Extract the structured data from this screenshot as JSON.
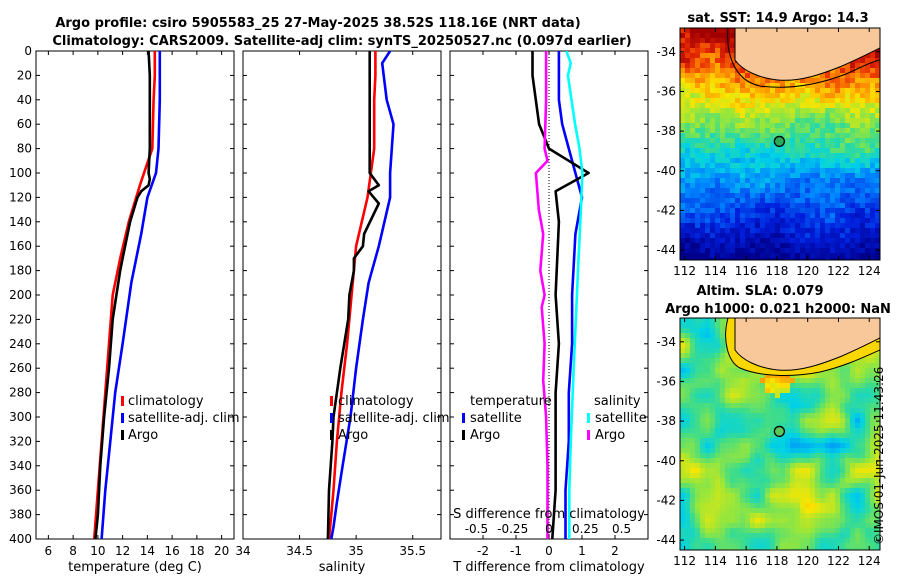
{
  "figure": {
    "title_line1": "Argo profile: csiro 5905583_25 27-May-2025 38.52S 118.16E (NRT data)",
    "title_line2": "Climatology: CARS2009. Satellite-adj clim: synTS_20250527.nc (0.097d earlier)",
    "timestamp": "©IMOS 01-Jun-2025 11:43:26"
  },
  "colors": {
    "climatology": "#ff0000",
    "satellite": "#0000ff",
    "argo": "#000000",
    "salinity_satellite": "#00ffff",
    "salinity_argo": "#ff00ff"
  },
  "chart_data": [
    {
      "id": "temperature",
      "type": "line",
      "xlabel": "temperature (deg C)",
      "ylabel": "",
      "xlim": [
        5,
        21
      ],
      "ylim": [
        400,
        0
      ],
      "xticks": [
        6,
        8,
        10,
        12,
        14,
        16,
        18,
        20
      ],
      "xtick_labels": [
        "6",
        "8",
        "10",
        "12",
        "14",
        "16",
        "18",
        "20"
      ],
      "yticks": [
        0,
        20,
        40,
        60,
        80,
        100,
        120,
        140,
        160,
        180,
        200,
        220,
        240,
        260,
        280,
        300,
        320,
        340,
        360,
        380,
        400
      ],
      "ytick_labels": [
        "0",
        "20",
        "40",
        "60",
        "80",
        "100",
        "120",
        "140",
        "160",
        "180",
        "200",
        "220",
        "240",
        "260",
        "280",
        "300",
        "320",
        "340",
        "360",
        "380",
        "400"
      ],
      "legend": [
        "climatology",
        "satellite-adj. clim",
        "Argo"
      ],
      "series": [
        {
          "name": "climatology",
          "x": [
            14.6,
            14.6,
            14.5,
            14.4,
            13.4,
            12.5,
            11.8,
            11.2,
            10.9,
            10.6,
            10.3,
            10.0,
            9.7
          ],
          "y": [
            0,
            20,
            40,
            80,
            110,
            140,
            170,
            200,
            240,
            280,
            320,
            360,
            400
          ]
        },
        {
          "name": "satellite-adj. clim",
          "x": [
            15.0,
            15.0,
            15.0,
            14.9,
            14.7,
            14.0,
            13.5,
            12.7,
            12.0,
            11.4,
            11.0,
            10.6,
            10.3
          ],
          "y": [
            0,
            20,
            40,
            80,
            100,
            120,
            150,
            190,
            240,
            280,
            320,
            360,
            400
          ]
        },
        {
          "name": "Argo",
          "x": [
            14.1,
            14.2,
            14.2,
            14.2,
            14.1,
            14.2,
            14.1,
            13.5,
            13.2,
            12.6,
            12.4,
            12.0,
            11.8,
            11.5,
            11.2,
            10.9,
            10.5,
            10.2,
            10.0,
            9.8
          ],
          "y": [
            0,
            20,
            40,
            80,
            100,
            105,
            110,
            115,
            120,
            140,
            150,
            170,
            180,
            200,
            220,
            260,
            300,
            340,
            380,
            400
          ]
        }
      ]
    },
    {
      "id": "salinity",
      "type": "line",
      "xlabel": "salinity",
      "ylabel": "",
      "xlim": [
        34,
        35.75
      ],
      "ylim": [
        400,
        0
      ],
      "xticks": [
        34,
        34.5,
        35,
        35.5
      ],
      "xtick_labels": [
        "34",
        "34.5",
        "35",
        "35.5"
      ],
      "legend": [
        "climatology",
        "satellite-adj. clim",
        "Argo"
      ],
      "series": [
        {
          "name": "climatology",
          "x": [
            35.17,
            35.17,
            35.16,
            35.16,
            35.1,
            35.0,
            34.96,
            34.92,
            34.87,
            34.83,
            34.8,
            34.78,
            34.76
          ],
          "y": [
            0,
            20,
            40,
            80,
            120,
            160,
            200,
            240,
            280,
            320,
            360,
            380,
            400
          ]
        },
        {
          "name": "satellite-adj. clim",
          "x": [
            35.3,
            35.23,
            35.27,
            35.33,
            35.3,
            35.3,
            35.2,
            35.11,
            35.06,
            35.0,
            34.95,
            34.88,
            34.83,
            34.8,
            34.78
          ],
          "y": [
            0,
            10,
            40,
            60,
            100,
            120,
            160,
            190,
            220,
            260,
            300,
            340,
            370,
            390,
            400
          ]
        },
        {
          "name": "Argo",
          "x": [
            35.12,
            35.12,
            35.12,
            35.12,
            35.2,
            35.11,
            35.2,
            35.07,
            35.06,
            34.98,
            34.98,
            34.94,
            34.93,
            34.86,
            34.83,
            34.8,
            34.79,
            34.76,
            34.75
          ],
          "y": [
            0,
            20,
            60,
            100,
            110,
            115,
            125,
            150,
            160,
            170,
            180,
            200,
            220,
            260,
            280,
            300,
            320,
            360,
            400
          ]
        }
      ]
    },
    {
      "id": "difference",
      "type": "line",
      "xlabel": "T difference from climatology",
      "top_label": "S difference from climatology",
      "xlim": [
        -3,
        3
      ],
      "ylim": [
        400,
        0
      ],
      "xticks": [
        -2,
        -1,
        0,
        1,
        2
      ],
      "xtick_labels": [
        "-2",
        "-1",
        "0",
        "1",
        "2"
      ],
      "s_xticks": [
        -0.5,
        -0.25,
        0,
        0.25,
        0.5
      ],
      "s_xtick_labels": [
        "-0.5",
        "-0.25",
        "0",
        "0.25",
        "0.5"
      ],
      "legend_temperature_title": "temperature",
      "legend_salinity_title": "salinity",
      "legend_temperature": [
        "satellite",
        "Argo"
      ],
      "legend_salinity": [
        "satellite",
        "Argo"
      ],
      "series": [
        {
          "name": "temperature satellite",
          "x": [
            0.3,
            0.3,
            0.4,
            0.6,
            0.8,
            1.0,
            0.8,
            0.7,
            0.7,
            0.6,
            0.6,
            0.5,
            0.5,
            0.5
          ],
          "y": [
            0,
            40,
            60,
            80,
            100,
            120,
            150,
            200,
            240,
            280,
            320,
            360,
            380,
            400
          ]
        },
        {
          "name": "temperature Argo",
          "x": [
            -0.5,
            -0.5,
            -0.3,
            0.0,
            0.6,
            1.2,
            0.2,
            0.3,
            0.2,
            0.3,
            0.2,
            0.2,
            0.2,
            0.1
          ],
          "y": [
            0,
            20,
            60,
            80,
            90,
            100,
            115,
            140,
            200,
            240,
            280,
            320,
            360,
            400
          ]
        },
        {
          "name": "salinity satellite",
          "x": [
            0.12,
            0.15,
            0.13,
            0.18,
            0.21,
            0.23,
            0.22,
            0.2,
            0.17,
            0.15,
            0.14,
            0.14
          ],
          "y": [
            0,
            10,
            20,
            60,
            80,
            100,
            130,
            180,
            260,
            320,
            360,
            400
          ]
        },
        {
          "name": "salinity Argo",
          "x": [
            -0.02,
            -0.02,
            -0.03,
            -0.01,
            -0.09,
            -0.07,
            -0.04,
            -0.06,
            -0.03,
            -0.05,
            -0.03,
            -0.04,
            -0.02,
            -0.01,
            -0.01
          ],
          "y": [
            0,
            40,
            80,
            90,
            100,
            130,
            150,
            180,
            200,
            210,
            240,
            270,
            300,
            340,
            400
          ]
        }
      ]
    },
    {
      "id": "sst_map",
      "type": "heatmap",
      "title": "sat. SST: 14.9 Argo: 14.3",
      "xticks": [
        112,
        114,
        116,
        118,
        120,
        122,
        124
      ],
      "xtick_labels": [
        "112",
        "114",
        "116",
        "118",
        "120",
        "122",
        "124"
      ],
      "yticks": [
        -34,
        -36,
        -38,
        -40,
        -42,
        -44
      ],
      "ytick_labels": [
        "-34",
        "-36",
        "-38",
        "-40",
        "-42",
        "-44"
      ],
      "xlim": [
        111.7,
        124.7
      ],
      "ylim": [
        -44.5,
        -32.8
      ],
      "argo_lon": 118.16,
      "argo_lat": -38.52
    },
    {
      "id": "sla_map",
      "type": "heatmap",
      "title_line1": "Altim. SLA: 0.079",
      "title_line2": "Argo h1000: 0.021 h2000: NaN",
      "xticks": [
        112,
        114,
        116,
        118,
        120,
        122,
        124
      ],
      "xtick_labels": [
        "112",
        "114",
        "116",
        "118",
        "120",
        "122",
        "124"
      ],
      "yticks": [
        -34,
        -36,
        -38,
        -40,
        -42,
        -44
      ],
      "ytick_labels": [
        "-34",
        "-36",
        "-38",
        "-40",
        "-42",
        "-44"
      ],
      "xlim": [
        111.7,
        124.7
      ],
      "ylim": [
        -44.5,
        -32.8
      ],
      "argo_lon": 118.16,
      "argo_lat": -38.52
    }
  ]
}
